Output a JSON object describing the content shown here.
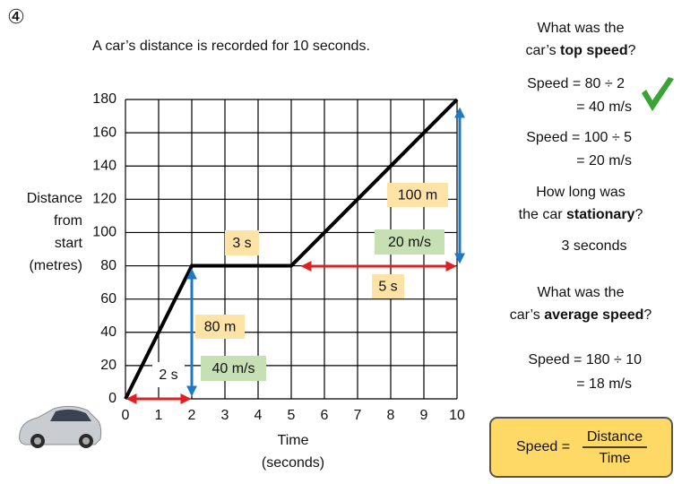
{
  "number": "④",
  "intro": "A car’s distance is recorded for 10 seconds.",
  "questions": [
    {
      "line1": "What was the",
      "pre": "car’s ",
      "bold": "top speed",
      "post": "?",
      "answers": [
        [
          "Speed = 80 ÷ 2",
          "= 40 m/s"
        ],
        [
          "Speed = 100 ÷ 5",
          "= 20 m/s"
        ]
      ]
    },
    {
      "line1": "How long was",
      "pre": "the car ",
      "bold": "stationary",
      "post": "?",
      "answers": [
        [
          "3 seconds"
        ]
      ]
    },
    {
      "line1": "What was the",
      "pre": "car’s ",
      "bold": "average speed",
      "post": "?",
      "answers": [
        [
          "Speed = 180 ÷ 10",
          "= 18 m/s"
        ]
      ]
    }
  ],
  "formula": {
    "lhs": "Speed =",
    "numerator": "Distance",
    "denominator": "Time"
  },
  "chart_data": {
    "type": "line",
    "x": [
      0,
      2,
      5,
      10
    ],
    "values": [
      0,
      80,
      80,
      180
    ],
    "color": "#000000",
    "xlim": [
      0,
      10
    ],
    "ylim": [
      0,
      180
    ],
    "xticks": [
      0,
      1,
      2,
      3,
      4,
      5,
      6,
      7,
      8,
      9,
      10
    ],
    "yticks": [
      0,
      20,
      40,
      60,
      80,
      100,
      120,
      140,
      160,
      180
    ],
    "grid": true,
    "x_label": [
      "Time",
      "(seconds)"
    ],
    "y_label": [
      "Distance",
      "from",
      "start",
      "(metres)"
    ],
    "annotations": [
      {
        "text": "2 s",
        "color": "#ffffff"
      },
      {
        "text": "40 m/s",
        "color": "#c6e0b4"
      },
      {
        "text": "80 m",
        "color": "#fde4a6"
      },
      {
        "text": "3 s",
        "color": "#fde4a6"
      },
      {
        "text": "5 s",
        "color": "#fde4a6"
      },
      {
        "text": "20 m/s",
        "color": "#c6e0b4"
      },
      {
        "text": "100 m",
        "color": "#fde4a6"
      }
    ]
  }
}
